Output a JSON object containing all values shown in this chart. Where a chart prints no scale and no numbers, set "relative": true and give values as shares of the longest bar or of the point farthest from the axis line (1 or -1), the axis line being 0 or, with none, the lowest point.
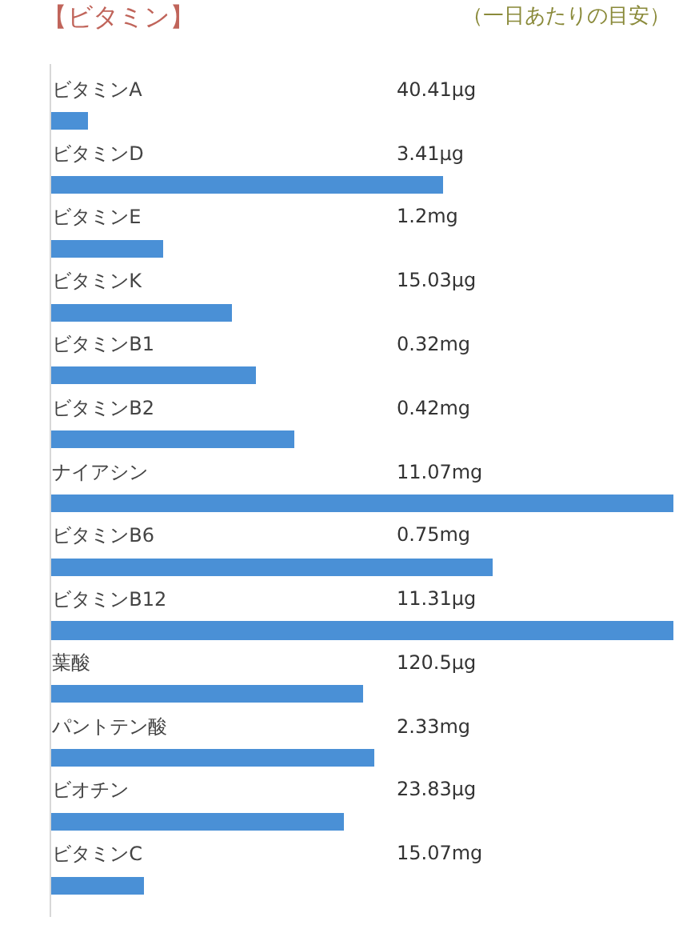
{
  "chart_data": {
    "type": "bar",
    "orientation": "horizontal",
    "relative": true,
    "title": "【ビタミン】",
    "subtitle": "（一日あたりの目安）",
    "categories": [
      "ビタミンA",
      "ビタミンD",
      "ビタミンE",
      "ビタミンK",
      "ビタミンB1",
      "ビタミンB2",
      "ナイアシン",
      "ビタミンB6",
      "ビタミンB12",
      "葉酸",
      "パントテン酸",
      "ビオチン",
      "ビタミンC"
    ],
    "values": [
      0.059,
      0.63,
      0.18,
      0.29,
      0.33,
      0.39,
      1,
      0.71,
      1,
      0.5,
      0.52,
      0.47,
      0.15
    ],
    "annotations": [
      "40.41μg",
      "3.41μg",
      "1.2mg",
      "15.03μg",
      "0.32mg",
      "0.42mg",
      "11.07mg",
      "0.75mg",
      "11.31μg",
      "120.5μg",
      "2.33mg",
      "23.83μg",
      "15.07mg"
    ],
    "color": "#4a90d6"
  }
}
